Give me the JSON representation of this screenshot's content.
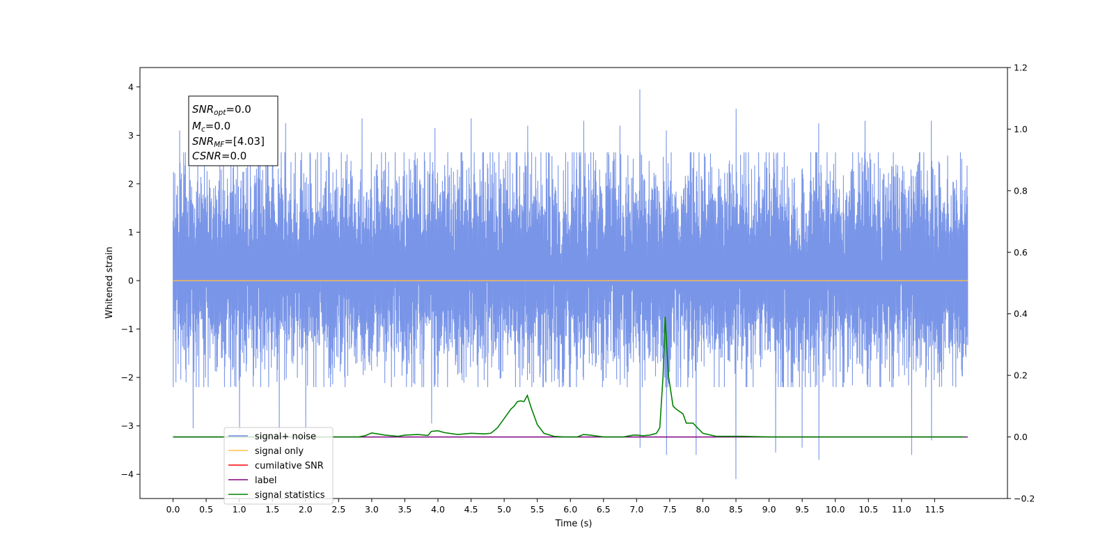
{
  "chart_data": {
    "type": "line",
    "xlabel": "Time (s)",
    "ylabel": "Whitened strain",
    "xlim": [
      -0.5,
      12.6
    ],
    "ylim": [
      -4.5,
      4.4
    ],
    "y2lim": [
      -0.2,
      1.2
    ],
    "x_ticks": [
      0.0,
      0.5,
      1.0,
      1.5,
      2.0,
      2.5,
      3.0,
      3.5,
      4.0,
      4.5,
      5.0,
      5.5,
      6.0,
      6.5,
      7.0,
      7.5,
      8.0,
      8.5,
      9.0,
      9.5,
      10.0,
      10.5,
      11.0,
      11.5
    ],
    "x_tick_labels": [
      "0.0",
      "0.5",
      "1.0",
      "1.5",
      "2.0",
      "2.5",
      "3.0",
      "3.5",
      "4.0",
      "4.5",
      "5.0",
      "5.5",
      "6.0",
      "6.5",
      "7.0",
      "7.5",
      "8.0",
      "8.5",
      "9.0",
      "9.5",
      "10.0",
      "10.5",
      "11.0",
      "11.5"
    ],
    "y_ticks": [
      -4,
      -3,
      -2,
      -1,
      0,
      1,
      2,
      3,
      4
    ],
    "y_tick_labels": [
      "−4",
      "−3",
      "−2",
      "−1",
      "0",
      "1",
      "2",
      "3",
      "4"
    ],
    "y2_ticks": [
      -0.2,
      0.0,
      0.2,
      0.4,
      0.6,
      0.8,
      1.0,
      1.2
    ],
    "y2_tick_labels": [
      "−0.2",
      "0.0",
      "0.2",
      "0.4",
      "0.6",
      "0.8",
      "1.0",
      "1.2"
    ],
    "grid": false,
    "legend_position": "lower-left",
    "noise": {
      "x_range": [
        0.0,
        12.0
      ],
      "baseline": 0.25,
      "typical_upper": 2.3,
      "typical_lower": -1.8,
      "spikes": [
        {
          "x": 0.1,
          "y": 3.1
        },
        {
          "x": 0.0,
          "y": -2.2
        },
        {
          "x": 0.3,
          "y": -3.05
        },
        {
          "x": 1.0,
          "y": -3.1
        },
        {
          "x": 1.5,
          "y": 3.05
        },
        {
          "x": 1.6,
          "y": -3.25
        },
        {
          "x": 2.0,
          "y": -3.25
        },
        {
          "x": 2.85,
          "y": 3.35
        },
        {
          "x": 3.9,
          "y": -2.95
        },
        {
          "x": 4.5,
          "y": 3.35
        },
        {
          "x": 6.2,
          "y": 3.3
        },
        {
          "x": 7.05,
          "y": 3.95
        },
        {
          "x": 7.05,
          "y": -3.45
        },
        {
          "x": 7.45,
          "y": 3.1
        },
        {
          "x": 7.45,
          "y": -3.6
        },
        {
          "x": 7.9,
          "y": -3.6
        },
        {
          "x": 8.5,
          "y": 3.55
        },
        {
          "x": 8.5,
          "y": -4.1
        },
        {
          "x": 9.1,
          "y": -3.55
        },
        {
          "x": 9.5,
          "y": -3.45
        },
        {
          "x": 9.75,
          "y": 3.25
        },
        {
          "x": 9.75,
          "y": -3.7
        },
        {
          "x": 11.15,
          "y": -3.6
        },
        {
          "x": 11.45,
          "y": -3.3
        },
        {
          "x": 11.45,
          "y": 3.3
        },
        {
          "x": 10.45,
          "y": 3.3
        },
        {
          "x": 5.35,
          "y": 3.2
        },
        {
          "x": 3.95,
          "y": 3.15
        },
        {
          "x": 6.75,
          "y": 3.2
        },
        {
          "x": 1.7,
          "y": 3.25
        }
      ]
    },
    "series": [
      {
        "name": "signal+ noise",
        "color": "#6a89e6"
      },
      {
        "name": "signal only",
        "color": "#ffbf47",
        "axis": "left",
        "x": [
          0.0,
          12.0
        ],
        "y": [
          0.0,
          0.0
        ]
      },
      {
        "name": "cumilative SNR",
        "color": "#ff0000"
      },
      {
        "name": "label",
        "color": "#800080",
        "axis": "right",
        "x": [
          0.0,
          12.0
        ],
        "y": [
          0.0,
          0.0
        ]
      },
      {
        "name": "signal statistics",
        "color": "#008000",
        "axis": "right",
        "x": [
          0.0,
          0.5,
          1.0,
          1.5,
          2.0,
          2.5,
          2.8,
          2.9,
          3.0,
          3.2,
          3.4,
          3.5,
          3.7,
          3.85,
          3.9,
          4.0,
          4.1,
          4.3,
          4.5,
          4.7,
          4.8,
          4.9,
          5.0,
          5.1,
          5.15,
          5.2,
          5.25,
          5.3,
          5.35,
          5.4,
          5.5,
          5.6,
          5.75,
          5.9,
          6.1,
          6.2,
          6.3,
          6.5,
          6.8,
          6.95,
          7.0,
          7.1,
          7.2,
          7.3,
          7.35,
          7.4,
          7.43,
          7.48,
          7.55,
          7.6,
          7.7,
          7.75,
          7.85,
          8.0,
          8.2,
          8.5,
          8.6,
          9.0,
          10.0,
          11.0,
          11.95
        ],
        "y": [
          0.0,
          0.0,
          0.0,
          0.0,
          0.0,
          0.0,
          0.0,
          0.004,
          0.013,
          0.006,
          0.002,
          0.006,
          0.008,
          0.005,
          0.018,
          0.02,
          0.014,
          0.008,
          0.012,
          0.01,
          0.012,
          0.03,
          0.06,
          0.09,
          0.1,
          0.115,
          0.117,
          0.115,
          0.135,
          0.1,
          0.04,
          0.012,
          0.002,
          0.0,
          0.0,
          0.008,
          0.006,
          0.0,
          0.0,
          0.006,
          0.006,
          0.004,
          0.006,
          0.012,
          0.03,
          0.2,
          0.39,
          0.2,
          0.1,
          0.09,
          0.075,
          0.045,
          0.045,
          0.012,
          0.002,
          0.002,
          0.002,
          0.0,
          0.0,
          0.0,
          0.0
        ]
      }
    ],
    "annotation": {
      "lines": [
        {
          "main": "SNR",
          "sub": "opt",
          "value": "=0.0"
        },
        {
          "main": "M",
          "sub": "c",
          "value": "=0.0"
        },
        {
          "main": "SNR",
          "sub": "MF",
          "value": "=[4.03]"
        },
        {
          "main": "CSNR",
          "sub": "",
          "value": "=0.0"
        }
      ]
    }
  }
}
